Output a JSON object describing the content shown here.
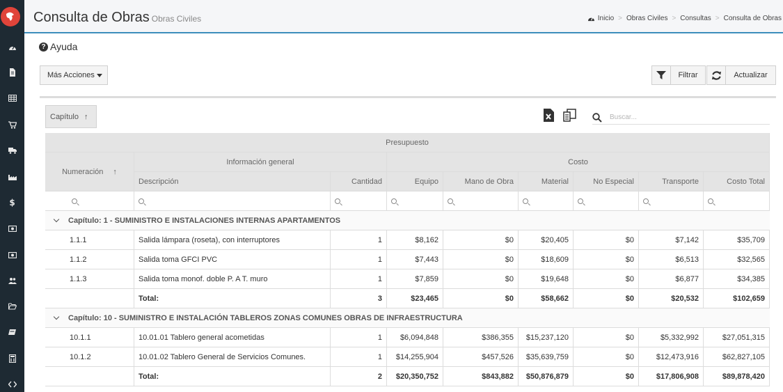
{
  "header": {
    "title": "Consulta de Obras",
    "subtitle": "Obras Civiles"
  },
  "breadcrumb": [
    "Inicio",
    "Obras Civiles",
    "Consultas",
    "Consulta de Obras"
  ],
  "help": {
    "label": "Ayuda"
  },
  "toolbar": {
    "more_actions": "Más Acciones",
    "filter": "Filtrar",
    "refresh": "Actualizar"
  },
  "grouping": {
    "chip_label": "Capítulo",
    "sort_glyph": "↑"
  },
  "search": {
    "placeholder": "Buscar..."
  },
  "table": {
    "band_presupuesto": "Presupuesto",
    "band_info": "Información general",
    "band_costo": "Costo",
    "col_numeracion": "Numeración",
    "col_numeracion_sort": "↑",
    "columns": [
      "Descripción",
      "Cantidad",
      "Equipo",
      "Mano de Obra",
      "Material",
      "No Especial",
      "Transporte",
      "Costo Total"
    ],
    "groups": [
      {
        "label": "Capítulo: 1 - SUMINISTRO E INSTALACIONES INTERNAS APARTAMENTOS",
        "rows": [
          [
            "1.1.1",
            "Salida lámpara (roseta), con interruptores",
            "1",
            "$8,162",
            "$0",
            "$20,405",
            "$0",
            "$7,142",
            "$35,709"
          ],
          [
            "1.1.2",
            "Salida toma GFCI PVC",
            "1",
            "$7,443",
            "$0",
            "$18,609",
            "$0",
            "$6,513",
            "$32,565"
          ],
          [
            "1.1.3",
            "Salida toma monof. doble P. A T. muro",
            "1",
            "$7,859",
            "$0",
            "$19,648",
            "$0",
            "$6,877",
            "$34,385"
          ]
        ],
        "total": [
          "Total:",
          "3",
          "$23,465",
          "$0",
          "$58,662",
          "$0",
          "$20,532",
          "$102,659"
        ]
      },
      {
        "label": "Capítulo: 10 - SUMINISTRO E INSTALACIÓN TABLEROS ZONAS COMUNES OBRAS DE INFRAESTRUCTURA",
        "rows": [
          [
            "10.1.1",
            "10.01.01 Tablero general acometidas",
            "1",
            "$6,094,848",
            "$386,355",
            "$15,237,120",
            "$0",
            "$5,332,992",
            "$27,051,315"
          ],
          [
            "10.1.2",
            "10.01.02 Tablero General de Servicios Comunes.",
            "1",
            "$14,255,904",
            "$457,526",
            "$35,639,759",
            "$0",
            "$12,473,916",
            "$62,827,105"
          ]
        ],
        "total": [
          "Total:",
          "2",
          "$20,350,752",
          "$843,882",
          "$50,876,879",
          "$0",
          "$17,806,908",
          "$89,878,420"
        ]
      }
    ]
  }
}
